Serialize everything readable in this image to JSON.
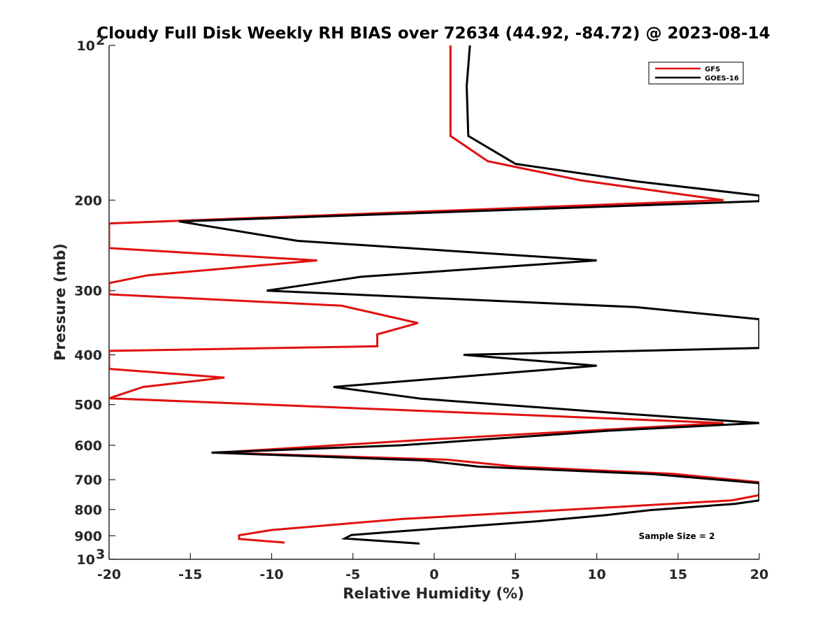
{
  "chart_data": {
    "type": "line",
    "title": "Cloudy Full Disk Weekly RH BIAS over 72634 (44.92, -84.72) @ 2023-08-14",
    "xlabel": "Relative Humidity (%)",
    "ylabel": "Pressure (mb)",
    "xlim": [
      -20,
      20
    ],
    "ylim": [
      100,
      1000
    ],
    "y_scale": "log",
    "y_reversed": true,
    "x_ticks": [
      "-20",
      "-15",
      "-10",
      "-5",
      "0",
      "5",
      "10",
      "15",
      "20"
    ],
    "y_ticks": [
      {
        "value": 100,
        "label": "10",
        "sup": "2"
      },
      {
        "value": 200,
        "label": "200"
      },
      {
        "value": 300,
        "label": "300"
      },
      {
        "value": 400,
        "label": "400"
      },
      {
        "value": 500,
        "label": "500"
      },
      {
        "value": 600,
        "label": "600"
      },
      {
        "value": 700,
        "label": "700"
      },
      {
        "value": 800,
        "label": "800"
      },
      {
        "value": 900,
        "label": "900"
      },
      {
        "value": 1000,
        "label": "10",
        "sup": "3"
      }
    ],
    "legend_position": "top-right",
    "grid": false,
    "annotation": "Sample Size = 2",
    "series": [
      {
        "name": "GFS",
        "color": "#e01010",
        "points": [
          [
            1.0,
            100
          ],
          [
            1.0,
            150
          ],
          [
            3.3,
            168
          ],
          [
            9.0,
            183
          ],
          [
            17.8,
            200
          ],
          [
            -20,
            222
          ],
          [
            -20,
            248
          ],
          [
            -7.2,
            262
          ],
          [
            -17.6,
            280
          ],
          [
            -20,
            290
          ],
          [
            -20,
            305
          ],
          [
            -5.7,
            321
          ],
          [
            -1.0,
            347
          ],
          [
            -3.5,
            365
          ],
          [
            -3.5,
            385
          ],
          [
            -20,
            393
          ],
          [
            -20,
            426
          ],
          [
            -12.9,
            443
          ],
          [
            -17.9,
            462
          ],
          [
            -20,
            486
          ],
          [
            17.8,
            543
          ],
          [
            -0.5,
            585
          ],
          [
            -13.3,
            620
          ],
          [
            0.8,
            640
          ],
          [
            5.0,
            660
          ],
          [
            14.7,
            682
          ],
          [
            20,
            708
          ],
          [
            20,
            750
          ],
          [
            18.3,
            768
          ],
          [
            10.0,
            795
          ],
          [
            -2.0,
            835
          ],
          [
            -10.0,
            877
          ],
          [
            -12.0,
            898
          ],
          [
            -12.0,
            913
          ],
          [
            -9.2,
            928
          ]
        ]
      },
      {
        "name": "GOES-16",
        "color": "#000000",
        "points": [
          [
            2.2,
            100
          ],
          [
            2.0,
            120
          ],
          [
            2.1,
            150
          ],
          [
            5.0,
            170
          ],
          [
            12.5,
            184
          ],
          [
            20,
            196
          ],
          [
            20,
            201
          ],
          [
            -15.7,
            220
          ],
          [
            -8.4,
            240
          ],
          [
            10.0,
            262
          ],
          [
            -4.5,
            282
          ],
          [
            -10.3,
            300
          ],
          [
            12.4,
            323
          ],
          [
            20,
            341
          ],
          [
            20,
            388
          ],
          [
            1.8,
            400
          ],
          [
            10.0,
            420
          ],
          [
            -6.2,
            462
          ],
          [
            -0.8,
            487
          ],
          [
            10.7,
            518
          ],
          [
            20,
            543
          ],
          [
            10.7,
            562
          ],
          [
            -2.0,
            600
          ],
          [
            -13.7,
            620
          ],
          [
            -0.7,
            642
          ],
          [
            2.7,
            660
          ],
          [
            13.5,
            683
          ],
          [
            20,
            711
          ],
          [
            20,
            768
          ],
          [
            18.5,
            780
          ],
          [
            13.3,
            802
          ],
          [
            10.6,
            820
          ],
          [
            6.4,
            843
          ],
          [
            -2.7,
            885
          ],
          [
            -5.1,
            897
          ],
          [
            -5.5,
            911
          ],
          [
            -0.9,
            932
          ]
        ]
      }
    ]
  }
}
